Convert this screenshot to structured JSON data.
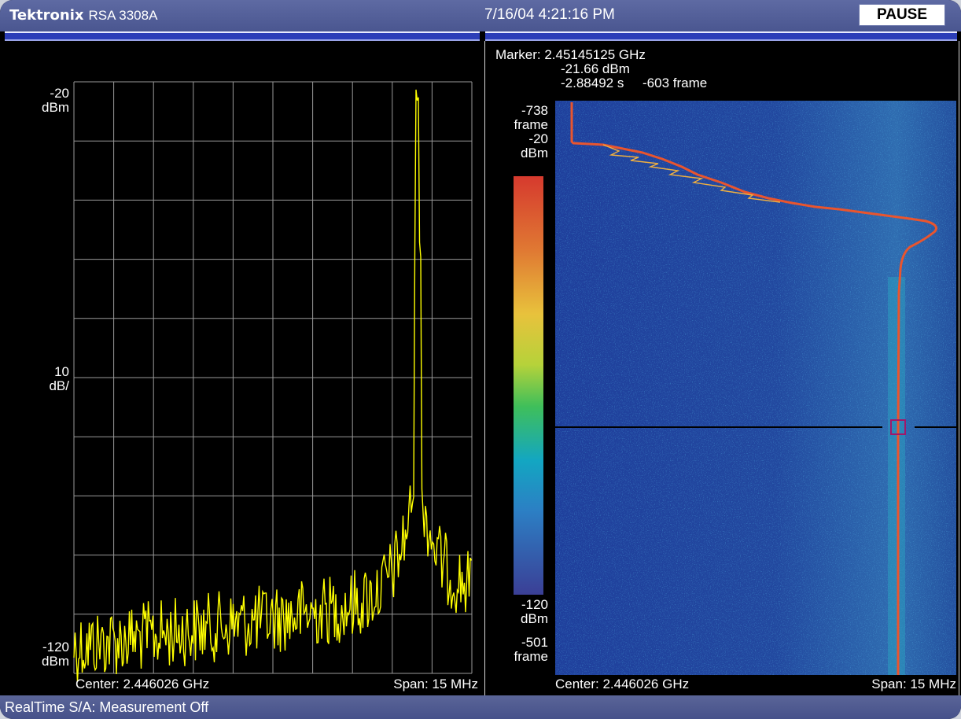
{
  "header": {
    "brand": "Tektronix",
    "model": "RSA 3308A",
    "datetime": "7/16/04 4:21:16 PM",
    "pause_label": "PAUSE"
  },
  "spectrum": {
    "ref_level": "-20",
    "ref_unit": "dBm",
    "scale": "10",
    "scale_unit": "dB/",
    "bottom_level": "-120",
    "bottom_unit": "dBm",
    "center": "Center: 2.446026 GHz",
    "span": "Span: 15 MHz",
    "trace_color": "#ffff00",
    "grid_color": "#9a9a9a"
  },
  "spectrogram": {
    "marker_freq": "Marker: 2.45145125 GHz",
    "marker_level": "-21.66 dBm",
    "marker_time": "-2.88492 s",
    "marker_frame": "-603 frame",
    "top_frame": "-738",
    "top_frame_unit": "frame",
    "scale_top": "-20",
    "scale_top_unit": "dBm",
    "scale_bottom": "-120",
    "scale_bottom_unit": "dBm",
    "bottom_frame": "-501",
    "bottom_frame_unit": "frame",
    "center": "Center: 2.446026 GHz",
    "span": "Span: 15 MHz",
    "marker_color": "#a0186a"
  },
  "status": {
    "text": "RealTime S/A: Measurement Off"
  }
}
